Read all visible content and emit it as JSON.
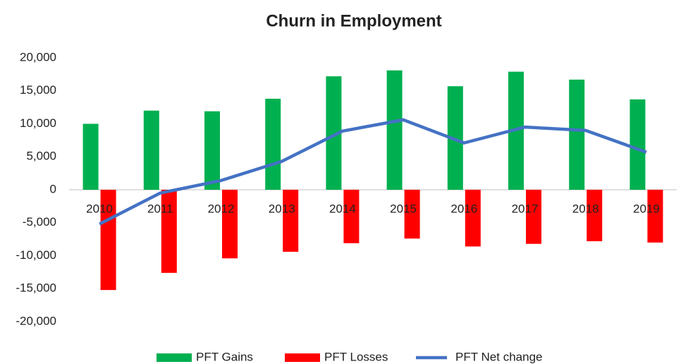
{
  "chart_data": {
    "type": "bar_line",
    "title": "Churn in Employment",
    "categories": [
      "2010",
      "2011",
      "2012",
      "2013",
      "2014",
      "2015",
      "2016",
      "2017",
      "2018",
      "2019"
    ],
    "series": [
      {
        "name": "PFT Gains",
        "color": "#00b050",
        "type": "bar",
        "values": [
          10000,
          12000,
          11900,
          13800,
          17200,
          18100,
          15700,
          17900,
          16700,
          13700
        ]
      },
      {
        "name": "PFT Losses",
        "color": "#ff0000",
        "type": "bar",
        "values": [
          -15200,
          -12600,
          -10400,
          -9400,
          -8100,
          -7400,
          -8600,
          -8200,
          -7800,
          -8000
        ]
      },
      {
        "name": "PFT Net change",
        "color": "#4472c4",
        "type": "line",
        "values": [
          -5200,
          -500,
          1400,
          4300,
          8900,
          10600,
          7100,
          9500,
          9000,
          5700
        ]
      }
    ],
    "ylim": [
      -20000,
      20000
    ],
    "yticks": [
      {
        "value": -20000,
        "label": "-20,000"
      },
      {
        "value": -15000,
        "label": "-15,000"
      },
      {
        "value": -10000,
        "label": "-10,000"
      },
      {
        "value": -5000,
        "label": "-5,000"
      },
      0,
      {
        "value": 5000,
        "label": "5,000"
      },
      {
        "value": 10000,
        "label": "10,000"
      },
      {
        "value": 15000,
        "label": "15,000"
      },
      {
        "value": 20000,
        "label": "20,000"
      }
    ],
    "grid": false,
    "legend": "bottom"
  }
}
